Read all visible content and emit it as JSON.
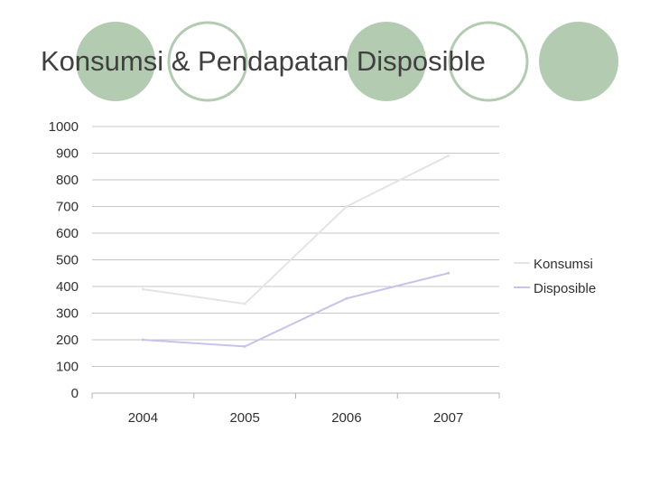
{
  "slide": {
    "title": "Konsumsi & Pendapatan Disposible",
    "accent_fill": "#b3cbb0",
    "accent_stroke": "#b3cbb0"
  },
  "chart_data": {
    "type": "line",
    "title": "",
    "xlabel": "",
    "ylabel": "",
    "categories": [
      "2004",
      "2005",
      "2006",
      "2007"
    ],
    "ylim": [
      0,
      1000
    ],
    "yticks": [
      0,
      100,
      200,
      300,
      400,
      500,
      600,
      700,
      800,
      900,
      1000
    ],
    "grid": true,
    "legend_position": "right",
    "series": [
      {
        "name": "Konsumsi",
        "values": [
          390,
          335,
          700,
          890
        ],
        "color": "#e4e4e4"
      },
      {
        "name": "Disposible",
        "values": [
          200,
          175,
          355,
          450
        ],
        "color": "#c4c4ec"
      }
    ]
  }
}
